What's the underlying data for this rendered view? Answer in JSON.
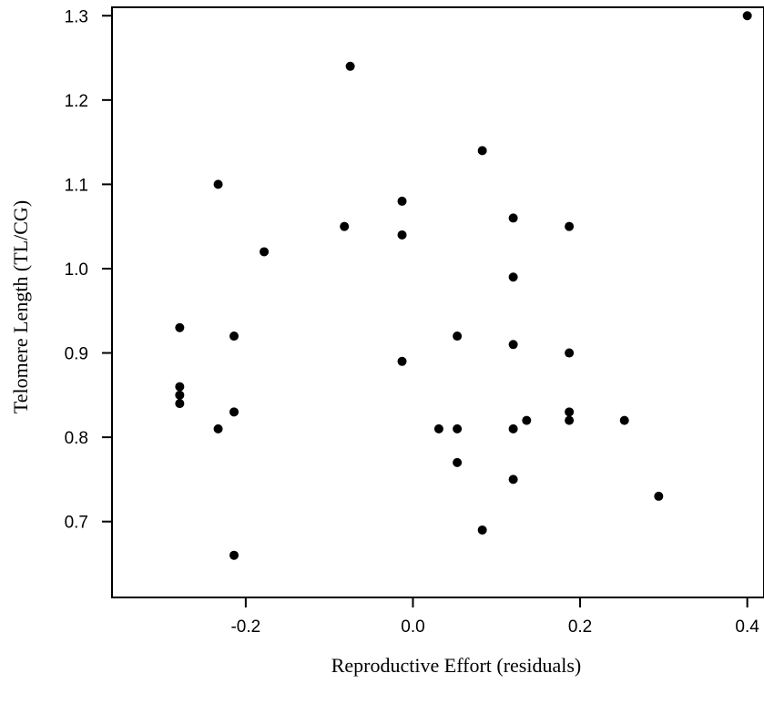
{
  "chart_data": {
    "type": "scatter",
    "title": "",
    "xlabel": "Reproductive Effort (residuals)",
    "ylabel": "Telomere Length (TL/CG)",
    "xlim": [
      -0.36,
      0.42
    ],
    "ylim": [
      0.61,
      1.31
    ],
    "x_ticks": [
      -0.2,
      0.0,
      0.2,
      0.4
    ],
    "x_tick_labels": [
      "-0.2",
      "0.0",
      "0.2",
      "0.4"
    ],
    "y_ticks": [
      0.7,
      0.8,
      0.9,
      1.0,
      1.1,
      1.2,
      1.3
    ],
    "y_tick_labels": [
      "0.7",
      "0.8",
      "0.9",
      "1.0",
      "1.1",
      "1.2",
      "1.3"
    ],
    "grid": false,
    "legend": "none",
    "marker_color": "#000000",
    "points": [
      {
        "x": -0.075,
        "y": 1.24
      },
      {
        "x": 0.4,
        "y": 1.3
      },
      {
        "x": 0.083,
        "y": 1.14
      },
      {
        "x": -0.233,
        "y": 1.1
      },
      {
        "x": -0.013,
        "y": 1.08
      },
      {
        "x": 0.12,
        "y": 1.06
      },
      {
        "x": -0.082,
        "y": 1.05
      },
      {
        "x": 0.187,
        "y": 1.05
      },
      {
        "x": -0.013,
        "y": 1.04
      },
      {
        "x": -0.178,
        "y": 1.02
      },
      {
        "x": 0.12,
        "y": 0.99
      },
      {
        "x": -0.279,
        "y": 0.93
      },
      {
        "x": -0.214,
        "y": 0.92
      },
      {
        "x": 0.053,
        "y": 0.92
      },
      {
        "x": 0.12,
        "y": 0.91
      },
      {
        "x": 0.187,
        "y": 0.9
      },
      {
        "x": -0.013,
        "y": 0.89
      },
      {
        "x": -0.279,
        "y": 0.86
      },
      {
        "x": -0.279,
        "y": 0.85
      },
      {
        "x": -0.279,
        "y": 0.84
      },
      {
        "x": -0.214,
        "y": 0.83
      },
      {
        "x": 0.187,
        "y": 0.83
      },
      {
        "x": 0.136,
        "y": 0.82
      },
      {
        "x": 0.187,
        "y": 0.82
      },
      {
        "x": 0.253,
        "y": 0.82
      },
      {
        "x": -0.233,
        "y": 0.81
      },
      {
        "x": 0.031,
        "y": 0.81
      },
      {
        "x": 0.053,
        "y": 0.81
      },
      {
        "x": 0.12,
        "y": 0.81
      },
      {
        "x": 0.053,
        "y": 0.77
      },
      {
        "x": 0.12,
        "y": 0.75
      },
      {
        "x": 0.294,
        "y": 0.73
      },
      {
        "x": 0.083,
        "y": 0.69
      },
      {
        "x": -0.214,
        "y": 0.66
      }
    ]
  }
}
